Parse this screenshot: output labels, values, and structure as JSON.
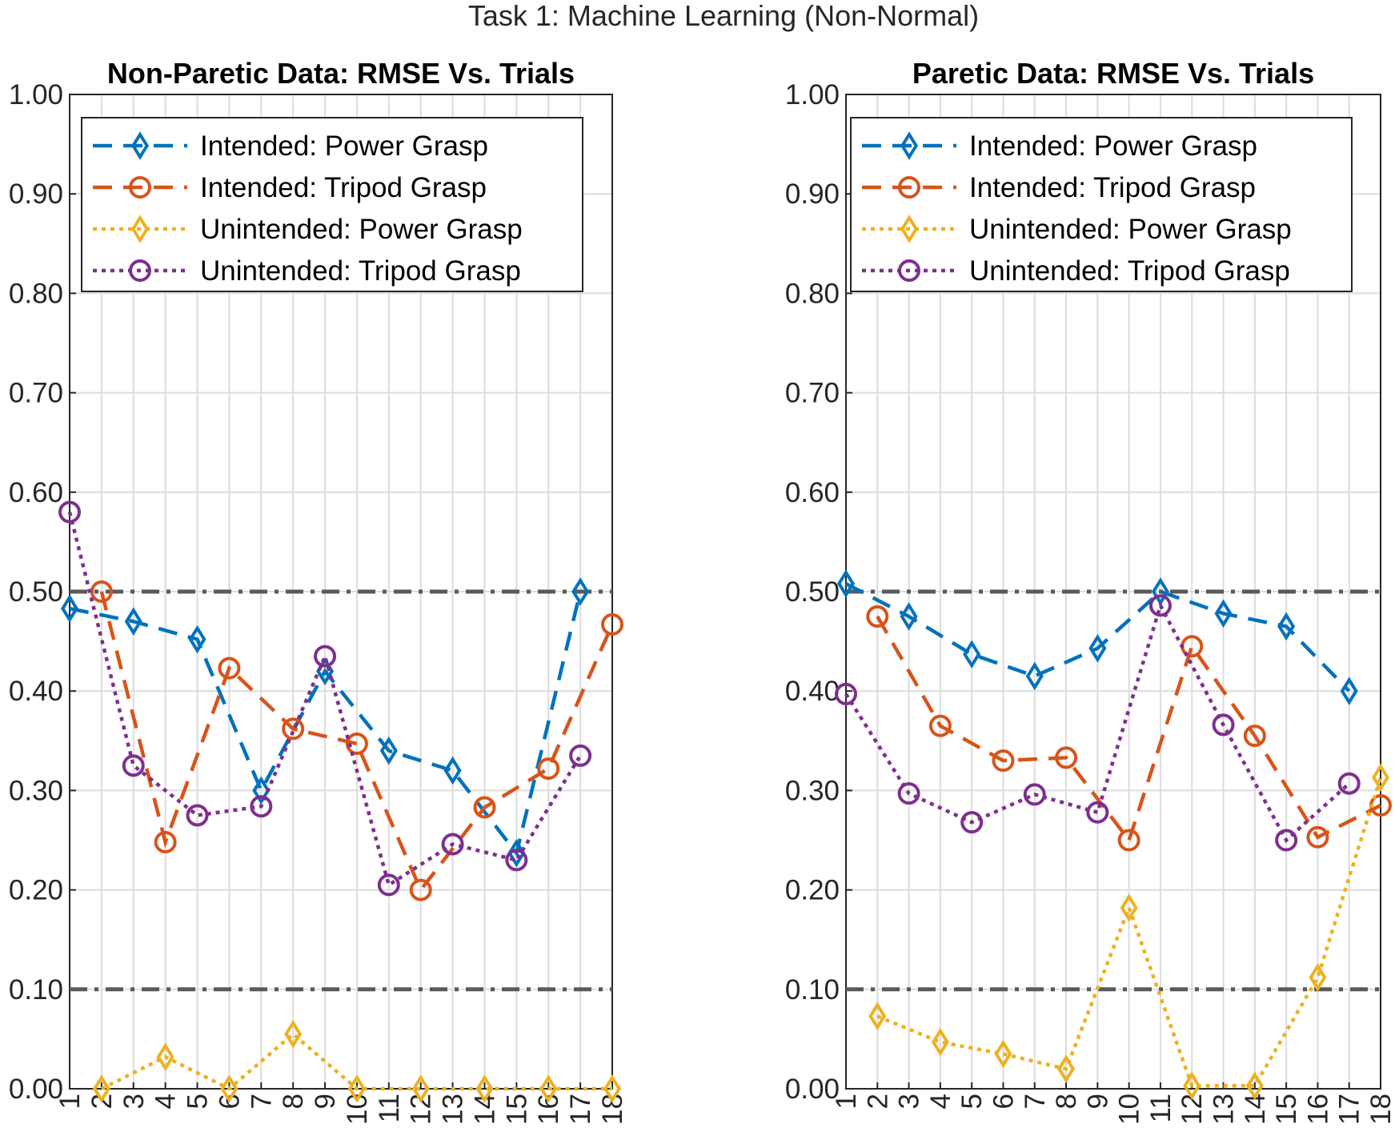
{
  "figure_title": "Task 1: Machine Learning (Non-Normal)",
  "chart_data": [
    {
      "type": "line",
      "title": "Non-Paretic Data: RMSE Vs. Trials",
      "xlabel": "",
      "ylabel": "",
      "x": [
        1,
        2,
        3,
        4,
        5,
        6,
        7,
        8,
        9,
        10,
        11,
        12,
        13,
        14,
        15,
        16,
        17,
        18
      ],
      "xlim": [
        1,
        18
      ],
      "ylim": [
        0,
        1
      ],
      "yticks": [
        "0.00",
        "0.10",
        "0.20",
        "0.30",
        "0.40",
        "0.50",
        "0.60",
        "0.70",
        "0.80",
        "0.90",
        "1.00"
      ],
      "xticks": [
        "1",
        "2",
        "3",
        "4",
        "5",
        "6",
        "7",
        "8",
        "9",
        "10",
        "11",
        "12",
        "13",
        "14",
        "15",
        "16",
        "17",
        "18"
      ],
      "grid": true,
      "legend_position": "top",
      "reference_lines": [
        0.5,
        0.1
      ],
      "series": [
        {
          "name": "Intended: Power Grasp",
          "color": "#0072BD",
          "dash": "dashed",
          "marker": "diamond",
          "values": [
            0.483,
            null,
            0.47,
            null,
            0.452,
            null,
            0.3,
            null,
            0.42,
            null,
            0.34,
            null,
            0.32,
            null,
            0.237,
            null,
            0.5,
            null
          ]
        },
        {
          "name": "Intended: Tripod Grasp",
          "color": "#D95319",
          "dash": "dashed",
          "marker": "circle",
          "values": [
            null,
            0.5,
            null,
            0.248,
            null,
            0.423,
            null,
            0.362,
            null,
            0.347,
            null,
            0.2,
            null,
            0.283,
            null,
            0.322,
            null,
            0.467
          ]
        },
        {
          "name": "Unintended: Power Grasp",
          "color": "#EDB120",
          "dash": "dotted",
          "marker": "diamond",
          "values": [
            null,
            0.0,
            null,
            0.032,
            null,
            0.0,
            null,
            0.055,
            null,
            0.0,
            null,
            0.0,
            null,
            0.0,
            null,
            0.0,
            null,
            0.0
          ]
        },
        {
          "name": "Unintended: Tripod Grasp",
          "color": "#7E2F8E",
          "dash": "dotted",
          "marker": "circle",
          "values": [
            0.58,
            null,
            0.325,
            null,
            0.275,
            null,
            0.284,
            null,
            0.435,
            null,
            0.205,
            null,
            0.246,
            null,
            0.23,
            null,
            0.335,
            null
          ]
        }
      ]
    },
    {
      "type": "line",
      "title": "Paretic Data: RMSE Vs. Trials",
      "xlabel": "",
      "ylabel": "",
      "x": [
        1,
        2,
        3,
        4,
        5,
        6,
        7,
        8,
        9,
        10,
        11,
        12,
        13,
        14,
        15,
        16,
        17,
        18
      ],
      "xlim": [
        1,
        18
      ],
      "ylim": [
        0,
        1
      ],
      "yticks": [
        "0.00",
        "0.10",
        "0.20",
        "0.30",
        "0.40",
        "0.50",
        "0.60",
        "0.70",
        "0.80",
        "0.90",
        "1.00"
      ],
      "xticks": [
        "1",
        "2",
        "3",
        "4",
        "5",
        "6",
        "7",
        "8",
        "9",
        "10",
        "11",
        "12",
        "13",
        "14",
        "15",
        "16",
        "17",
        "18"
      ],
      "grid": true,
      "legend_position": "top",
      "reference_lines": [
        0.5,
        0.1
      ],
      "series": [
        {
          "name": "Intended: Power Grasp",
          "color": "#0072BD",
          "dash": "dashed",
          "marker": "diamond",
          "values": [
            0.508,
            null,
            0.475,
            null,
            0.437,
            null,
            0.415,
            null,
            0.443,
            null,
            0.5,
            null,
            0.478,
            null,
            0.465,
            null,
            0.4,
            null
          ]
        },
        {
          "name": "Intended: Tripod Grasp",
          "color": "#D95319",
          "dash": "dashed",
          "marker": "circle",
          "values": [
            null,
            0.475,
            null,
            0.365,
            null,
            0.33,
            null,
            0.333,
            null,
            0.25,
            null,
            0.445,
            null,
            0.355,
            null,
            0.253,
            null,
            0.285
          ]
        },
        {
          "name": "Unintended: Power Grasp",
          "color": "#EDB120",
          "dash": "dotted",
          "marker": "diamond",
          "values": [
            null,
            0.073,
            null,
            0.047,
            null,
            0.035,
            null,
            0.02,
            null,
            0.182,
            null,
            0.003,
            null,
            0.003,
            null,
            0.112,
            null,
            0.313
          ]
        },
        {
          "name": "Unintended: Tripod Grasp",
          "color": "#7E2F8E",
          "dash": "dotted",
          "marker": "circle",
          "values": [
            0.397,
            null,
            0.297,
            null,
            0.268,
            null,
            0.296,
            null,
            0.278,
            null,
            0.486,
            null,
            0.366,
            null,
            0.25,
            null,
            0.307,
            null
          ]
        }
      ]
    }
  ]
}
